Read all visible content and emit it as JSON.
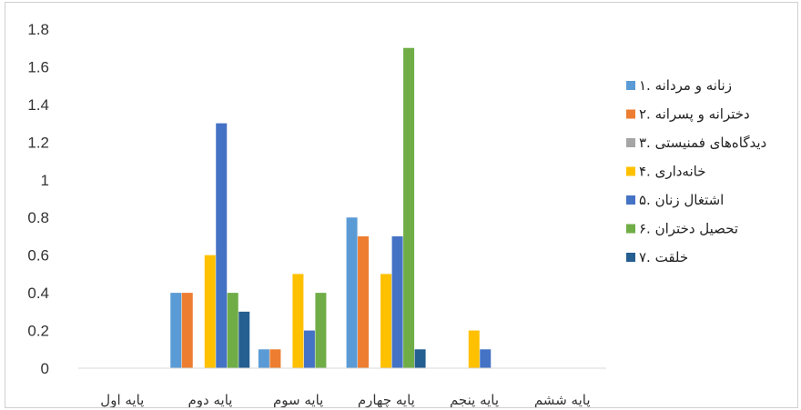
{
  "chart_data": {
    "type": "bar",
    "title": "",
    "xlabel": "",
    "ylabel": "",
    "ylim": [
      0,
      1.8
    ],
    "yticks": [
      0,
      0.2,
      0.4,
      0.6,
      0.8,
      1,
      1.2,
      1.4,
      1.6,
      1.8
    ],
    "ytick_labels": [
      "0",
      "0.2",
      "0.4",
      "0.6",
      "0.8",
      "1",
      "1.2",
      "1.4",
      "1.6",
      "1.8"
    ],
    "grid": false,
    "legend_position": "right",
    "categories": [
      "پایه اول",
      "پایه دوم",
      "پایه سوم",
      "پایه چهارم",
      "پایه پنجم",
      "پایه ششم"
    ],
    "series": [
      {
        "name": "۱. زنانه و مردانه",
        "color": "#5b9bd5",
        "values": [
          0,
          0.4,
          0.1,
          0.8,
          0,
          0
        ]
      },
      {
        "name": "۲. دخترانه و پسرانه",
        "color": "#ed7d31",
        "values": [
          0,
          0.4,
          0.1,
          0.7,
          0,
          0
        ]
      },
      {
        "name": "۳. دیدگاه‌های فمنیستی",
        "color": "#a5a5a5",
        "values": [
          0,
          0,
          0,
          0,
          0,
          0
        ]
      },
      {
        "name": "۴. خانه‌داری",
        "color": "#ffc000",
        "values": [
          0,
          0.6,
          0.5,
          0.5,
          0.2,
          0
        ]
      },
      {
        "name": "۵. اشتغال زنان",
        "color": "#4472c4",
        "values": [
          0,
          1.3,
          0.2,
          0.7,
          0.1,
          0
        ]
      },
      {
        "name": "۶. تحصیل دختران",
        "color": "#70ad47",
        "values": [
          0,
          0.4,
          0.4,
          1.7,
          0,
          0
        ]
      },
      {
        "name": "۷. خلقت",
        "color": "#255e91",
        "values": [
          0,
          0.3,
          0,
          0.1,
          0,
          0
        ]
      }
    ]
  }
}
